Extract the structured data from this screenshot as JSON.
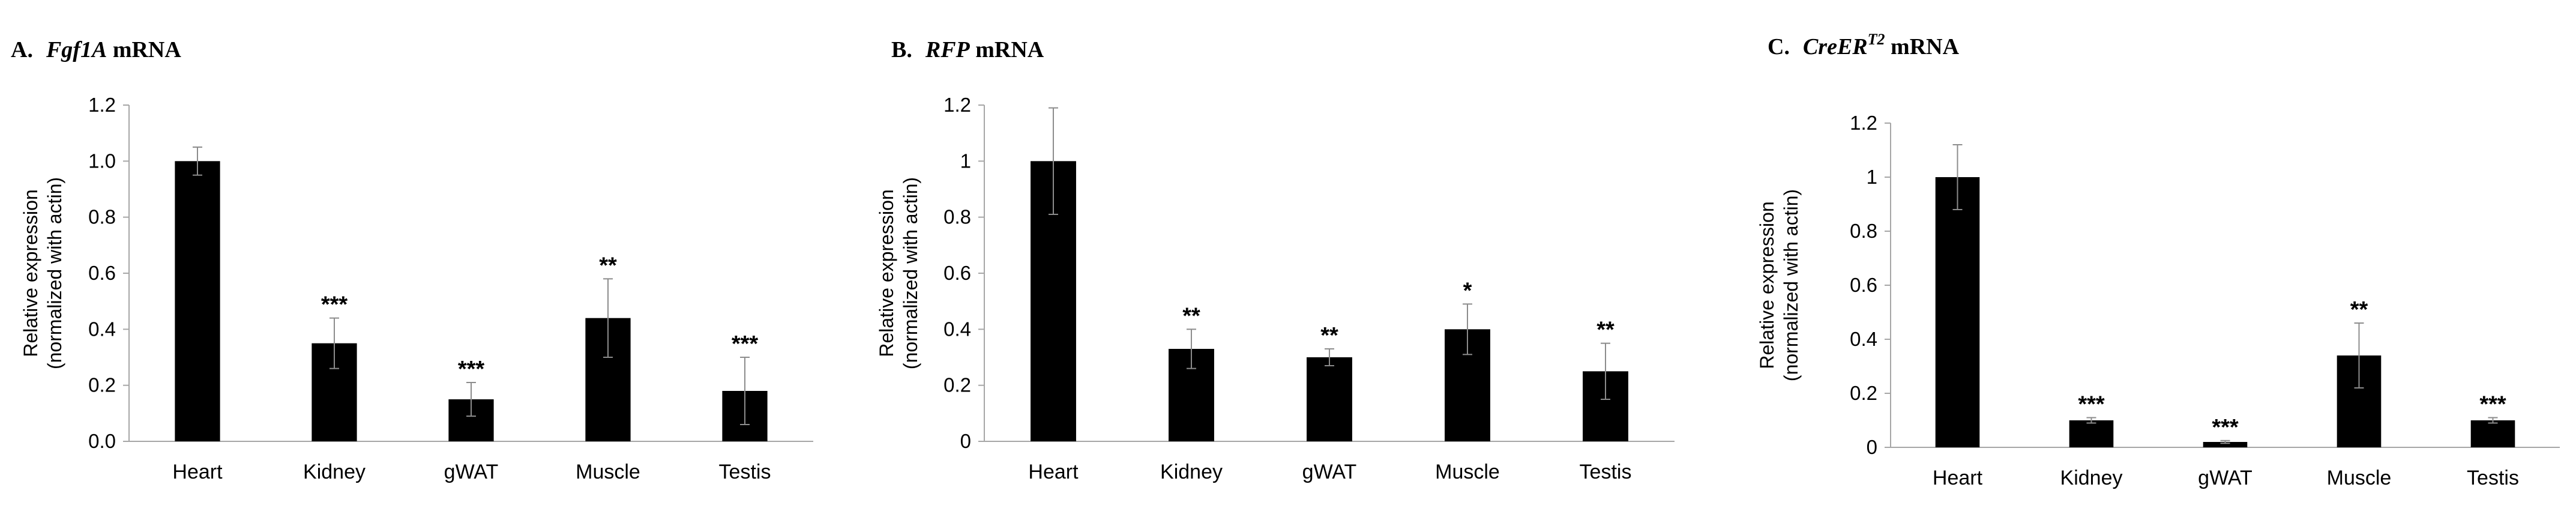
{
  "chart_data": [
    {
      "type": "bar",
      "panel_letter": "A.",
      "gene": "Fgf1A",
      "gene_sup": "",
      "title_suffix": " mRNA",
      "ylabel": [
        "Relative expression",
        "(normalized with actin)"
      ],
      "categories": [
        "Heart",
        "Kidney",
        "gWAT",
        "Muscle",
        "Testis"
      ],
      "values": [
        1.0,
        0.35,
        0.15,
        0.44,
        0.18
      ],
      "errors": [
        0.05,
        0.09,
        0.06,
        0.14,
        0.12
      ],
      "significance": [
        "",
        "***",
        "***",
        "**",
        "***"
      ],
      "ylim": [
        0,
        1.2
      ],
      "ticks": [
        0,
        0.2,
        0.4,
        0.6,
        0.8,
        1.0,
        1.2
      ],
      "tick_labels": [
        "0.0",
        "0.2",
        "0.4",
        "0.6",
        "0.8",
        "1.0",
        "1.2"
      ]
    },
    {
      "type": "bar",
      "panel_letter": "B.",
      "gene": "RFP",
      "gene_sup": "",
      "title_suffix": " mRNA",
      "ylabel": [
        "Relative expression",
        "(normalized with actin)"
      ],
      "categories": [
        "Heart",
        "Kidney",
        "gWAT",
        "Muscle",
        "Testis"
      ],
      "values": [
        1.0,
        0.33,
        0.3,
        0.4,
        0.25
      ],
      "errors": [
        0.19,
        0.07,
        0.03,
        0.09,
        0.1
      ],
      "significance": [
        "",
        "**",
        "**",
        "*",
        "**"
      ],
      "ylim": [
        0,
        1.2
      ],
      "ticks": [
        0,
        0.2,
        0.4,
        0.6,
        0.8,
        1.0,
        1.2
      ],
      "tick_labels": [
        "0",
        "0.2",
        "0.4",
        "0.6",
        "0.8",
        "1",
        "1.2"
      ]
    },
    {
      "type": "bar",
      "panel_letter": "C.",
      "gene": "CreER",
      "gene_sup": "T2",
      "title_suffix": " mRNA",
      "ylabel": [
        "Relative expression",
        "(normalized with actin)"
      ],
      "categories": [
        "Heart",
        "Kidney",
        "gWAT",
        "Muscle",
        "Testis"
      ],
      "values": [
        1.0,
        0.1,
        0.02,
        0.34,
        0.1
      ],
      "errors": [
        0.12,
        0.01,
        0.005,
        0.12,
        0.01
      ],
      "significance": [
        "",
        "***",
        "***",
        "**",
        "***"
      ],
      "ylim": [
        0,
        1.2
      ],
      "ticks": [
        0,
        0.2,
        0.4,
        0.6,
        0.8,
        1.0,
        1.2
      ],
      "tick_labels": [
        "0",
        "0.2",
        "0.4",
        "0.6",
        "0.8",
        "1",
        "1.2"
      ]
    }
  ],
  "colors": {
    "bar": "#000000",
    "axis": "#a6a6a6",
    "error": "#8c8c8c",
    "text": "#000000"
  }
}
